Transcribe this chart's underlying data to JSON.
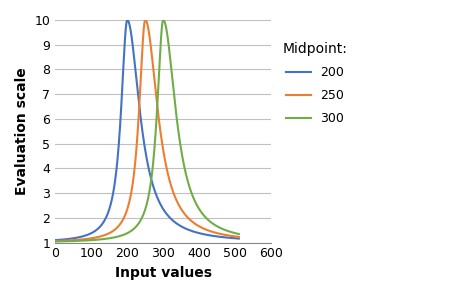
{
  "midpoints": [
    200,
    250,
    300
  ],
  "colors": [
    "#4472C4",
    "#ED7D31",
    "#70AD47"
  ],
  "legend_labels": [
    "200",
    "250",
    "300"
  ],
  "legend_title": "Midpoint:",
  "xlabel": "Input values",
  "ylabel": "Evaluation scale",
  "xlim": [
    0,
    600
  ],
  "ylim": [
    1,
    10
  ],
  "yticks": [
    1,
    2,
    3,
    4,
    5,
    6,
    7,
    8,
    9,
    10
  ],
  "xticks": [
    0,
    100,
    200,
    300,
    400,
    500,
    600
  ],
  "x_start": 0,
  "x_end": 510,
  "max_val": 10,
  "min_val": 1,
  "spread": 30,
  "background_color": "#ffffff",
  "grid_color": "#C0C0C0"
}
